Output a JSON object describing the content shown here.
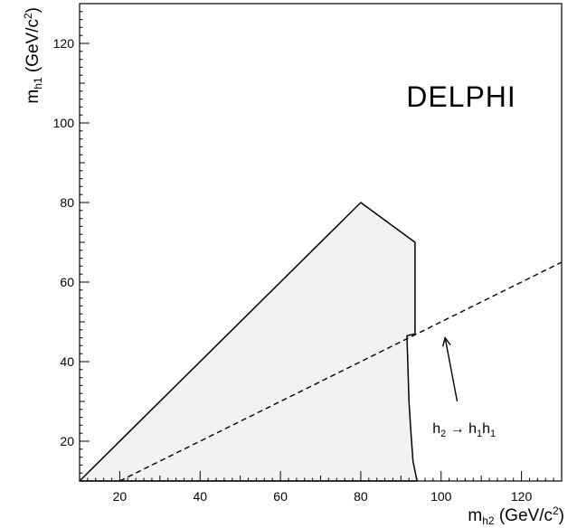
{
  "chart_data": {
    "type": "area",
    "experiment_label": "DELPHI",
    "xlim": [
      10,
      130
    ],
    "ylim": [
      10,
      130
    ],
    "x_ticks": [
      20,
      40,
      60,
      80,
      100,
      120
    ],
    "y_ticks": [
      20,
      40,
      60,
      80,
      100,
      120
    ],
    "x_tick_labels": [
      "20",
      "40",
      "60",
      "80",
      "100",
      "120"
    ],
    "y_tick_labels": [
      "20",
      "40",
      "60",
      "80",
      "100",
      "120"
    ],
    "xlabel": {
      "main": "m",
      "sub": "h2",
      "units": " (GeV/c",
      "sup": "2",
      "close": ")"
    },
    "ylabel": {
      "main": "m",
      "sub": "h1",
      "units": " (GeV/c",
      "sup": "2",
      "close": ")"
    },
    "excluded_region": {
      "fill": "#f2f2f2",
      "stroke": "#000000",
      "points": [
        [
          10,
          10
        ],
        [
          80,
          80
        ],
        [
          93.5,
          70
        ],
        [
          93.5,
          47
        ],
        [
          91.5,
          46.5
        ],
        [
          92,
          30
        ],
        [
          92.5,
          22
        ],
        [
          93,
          15
        ],
        [
          94,
          10
        ]
      ]
    },
    "threshold_line": {
      "style": "dashed",
      "description": "m_h1 = m_h2 / 2",
      "points": [
        [
          20,
          10
        ],
        [
          130,
          65
        ]
      ]
    },
    "annotation": {
      "text_parts": [
        "h",
        "2",
        " → ",
        "h",
        "1",
        "h",
        "1"
      ],
      "arrow_from": [
        104,
        30
      ],
      "arrow_to": [
        101,
        46
      ],
      "text_position": [
        101,
        22
      ]
    }
  }
}
